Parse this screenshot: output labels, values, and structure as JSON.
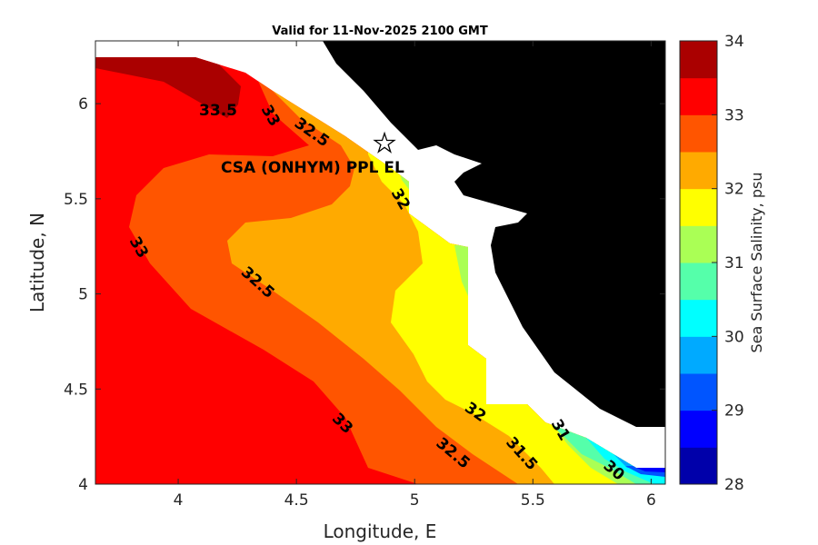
{
  "chart_data": {
    "type": "heatmap",
    "subtype": "filled-contour-map",
    "title": "Valid for 11-Nov-2025 2100 GMT",
    "xlabel": "Longitude, E",
    "ylabel": "Latitude, N",
    "xlim": [
      3.65,
      6.06
    ],
    "ylim": [
      4.0,
      6.33
    ],
    "xticks": [
      "4",
      "4.5",
      "5",
      "5.5",
      "6"
    ],
    "yticks": [
      "4",
      "4.5",
      "5",
      "5.5",
      "6"
    ],
    "colorbar": {
      "label": "Sea Surface Salinity, psu",
      "range": [
        28,
        34
      ],
      "ticks": [
        "28",
        "29",
        "30",
        "31",
        "32",
        "33",
        "34"
      ],
      "levels": [
        28,
        28.5,
        29,
        29.5,
        30,
        30.5,
        31,
        31.5,
        32,
        32.5,
        33,
        33.5,
        34
      ],
      "colors": [
        "#0000aa",
        "#0000ff",
        "#0055ff",
        "#00aaff",
        "#00ffff",
        "#55ffaa",
        "#aaff55",
        "#ffff00",
        "#ffaa00",
        "#ff5500",
        "#ff0000",
        "#aa0000"
      ]
    },
    "contour_labels": [
      "33.5",
      "33",
      "32.5",
      "32",
      "33",
      "32.5",
      "33",
      "32.5",
      "32",
      "31.5",
      "31",
      "30"
    ],
    "station": {
      "label": "CSA (ONHYM) PPL EL",
      "lon": 4.88,
      "lat": 5.75
    },
    "land_color": "#000000"
  }
}
